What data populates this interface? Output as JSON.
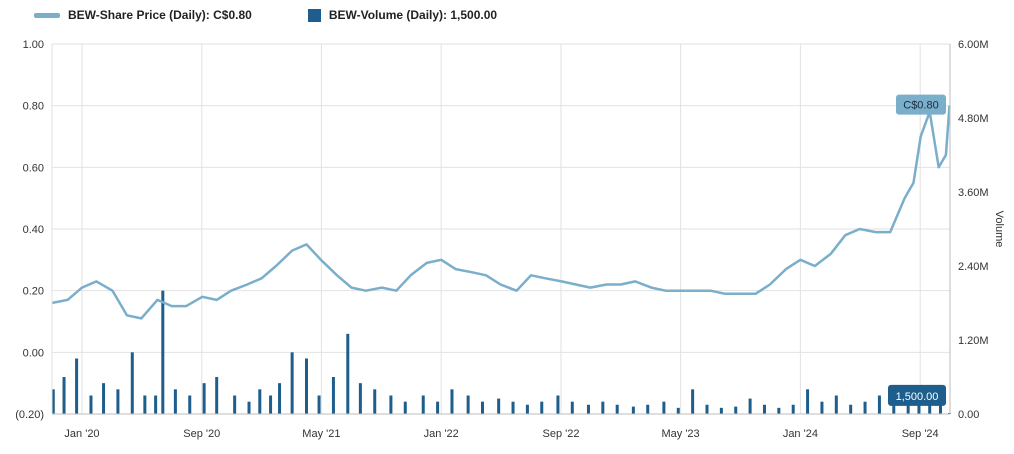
{
  "legend": {
    "price_label": "BEW-Share Price (Daily): C$0.80",
    "volume_label": "BEW-Volume (Daily): 1,500.00"
  },
  "colors": {
    "price": "#7aaecb",
    "volume": "#1d5e8c",
    "grid": "#e2e2e2",
    "text": "#333333"
  },
  "chart_data": {
    "type": "line",
    "title": "",
    "xlabel": "",
    "ylabel_left": "",
    "ylabel_right": "Volume",
    "ylim_left": [
      -0.2,
      1.0
    ],
    "ylim_right": [
      0,
      6000000
    ],
    "xlim": [
      2019.833,
      2024.833
    ],
    "y_ticks_left": [
      -0.2,
      0,
      0.2,
      0.4,
      0.6,
      0.8,
      1.0
    ],
    "y_tick_labels_left": [
      "(0.20)",
      "0.00",
      "0.20",
      "0.40",
      "0.60",
      "0.80",
      "1.00"
    ],
    "y_ticks_right": [
      0,
      1200000,
      2400000,
      3600000,
      4800000,
      6000000
    ],
    "y_tick_labels_right": [
      "0.00",
      "1.20M",
      "2.40M",
      "3.60M",
      "4.80M",
      "6.00M"
    ],
    "x_ticks": [
      2020.0,
      2020.667,
      2021.333,
      2022.0,
      2022.667,
      2023.333,
      2024.0,
      2024.667
    ],
    "x_tick_labels": [
      "Jan '20",
      "Sep '20",
      "May '21",
      "Jan '22",
      "Sep '22",
      "May '23",
      "Jan '24",
      "Sep '24"
    ],
    "series": [
      {
        "name": "BEW-Share Price (Daily)",
        "axis": "left",
        "x": [
          2019.83,
          2019.92,
          2020.0,
          2020.08,
          2020.17,
          2020.25,
          2020.33,
          2020.42,
          2020.5,
          2020.58,
          2020.67,
          2020.75,
          2020.83,
          2020.92,
          2021.0,
          2021.08,
          2021.17,
          2021.25,
          2021.33,
          2021.42,
          2021.5,
          2021.58,
          2021.67,
          2021.75,
          2021.83,
          2021.92,
          2022.0,
          2022.08,
          2022.17,
          2022.25,
          2022.33,
          2022.42,
          2022.5,
          2022.58,
          2022.67,
          2022.75,
          2022.83,
          2022.92,
          2023.0,
          2023.08,
          2023.17,
          2023.25,
          2023.33,
          2023.42,
          2023.5,
          2023.58,
          2023.67,
          2023.75,
          2023.83,
          2023.92,
          2024.0,
          2024.08,
          2024.17,
          2024.25,
          2024.33,
          2024.42,
          2024.5,
          2024.58,
          2024.63,
          2024.67,
          2024.72,
          2024.77,
          2024.81,
          2024.83
        ],
        "values": [
          0.16,
          0.17,
          0.21,
          0.23,
          0.2,
          0.12,
          0.11,
          0.17,
          0.15,
          0.15,
          0.18,
          0.17,
          0.2,
          0.22,
          0.24,
          0.28,
          0.33,
          0.35,
          0.3,
          0.25,
          0.21,
          0.2,
          0.21,
          0.2,
          0.25,
          0.29,
          0.3,
          0.27,
          0.26,
          0.25,
          0.22,
          0.2,
          0.25,
          0.24,
          0.23,
          0.22,
          0.21,
          0.22,
          0.22,
          0.23,
          0.21,
          0.2,
          0.2,
          0.2,
          0.2,
          0.19,
          0.19,
          0.19,
          0.22,
          0.27,
          0.3,
          0.28,
          0.32,
          0.38,
          0.4,
          0.39,
          0.39,
          0.5,
          0.55,
          0.7,
          0.78,
          0.6,
          0.64,
          0.8
        ]
      },
      {
        "name": "BEW-Volume (Daily)",
        "axis": "right",
        "type": "bar",
        "x": [
          2019.84,
          2019.9,
          2019.97,
          2020.05,
          2020.12,
          2020.2,
          2020.28,
          2020.35,
          2020.41,
          2020.45,
          2020.52,
          2020.6,
          2020.68,
          2020.75,
          2020.85,
          2020.93,
          2020.99,
          2021.05,
          2021.1,
          2021.17,
          2021.25,
          2021.32,
          2021.4,
          2021.48,
          2021.55,
          2021.63,
          2021.72,
          2021.8,
          2021.9,
          2021.98,
          2022.06,
          2022.15,
          2022.23,
          2022.32,
          2022.4,
          2022.48,
          2022.56,
          2022.65,
          2022.73,
          2022.82,
          2022.9,
          2022.98,
          2023.07,
          2023.15,
          2023.24,
          2023.32,
          2023.4,
          2023.48,
          2023.56,
          2023.64,
          2023.72,
          2023.8,
          2023.88,
          2023.96,
          2024.04,
          2024.12,
          2024.2,
          2024.28,
          2024.36,
          2024.44,
          2024.52,
          2024.6,
          2024.66,
          2024.72,
          2024.78,
          2024.83
        ],
        "values": [
          400000,
          600000,
          900000,
          300000,
          500000,
          400000,
          1000000,
          300000,
          300000,
          2000000,
          400000,
          300000,
          500000,
          600000,
          300000,
          200000,
          400000,
          300000,
          500000,
          1000000,
          900000,
          300000,
          600000,
          1300000,
          500000,
          400000,
          300000,
          200000,
          300000,
          200000,
          400000,
          300000,
          200000,
          250000,
          200000,
          150000,
          200000,
          300000,
          200000,
          150000,
          200000,
          150000,
          120000,
          150000,
          200000,
          100000,
          400000,
          150000,
          100000,
          120000,
          250000,
          150000,
          100000,
          150000,
          400000,
          200000,
          300000,
          150000,
          200000,
          300000,
          200000,
          250000,
          400000,
          350000,
          450000,
          1500
        ]
      }
    ],
    "annotations": [
      {
        "label": "C$0.80",
        "series": "BEW-Share Price (Daily)",
        "value": 0.8
      },
      {
        "label": "1,500.00",
        "series": "BEW-Volume (Daily)",
        "value": 1500
      }
    ]
  }
}
